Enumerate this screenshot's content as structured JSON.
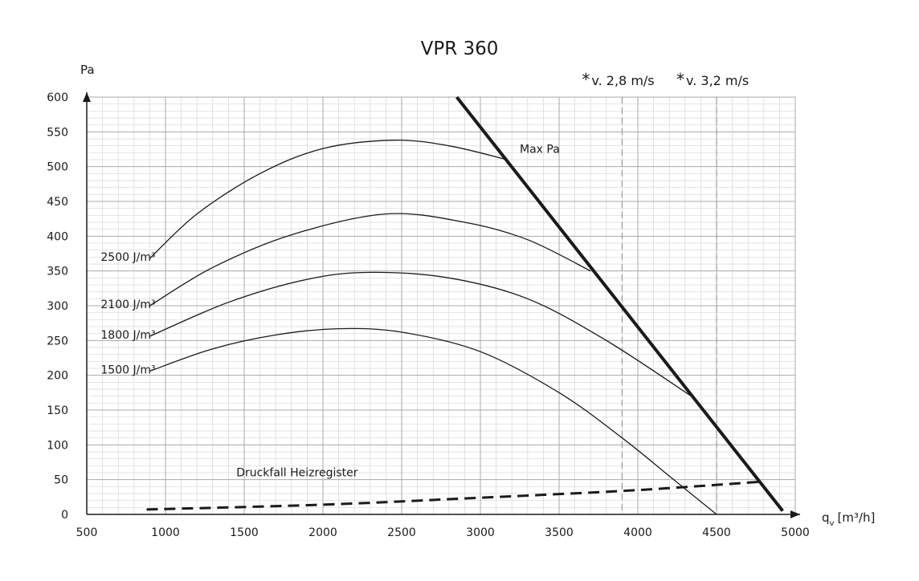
{
  "chart_data": {
    "type": "line",
    "title": "VPR 360",
    "ylabel": "Pa",
    "xlabel_main": "q",
    "xlabel_sub": "v",
    "xlabel_unit": "[m³/h]",
    "xlim": [
      500,
      5000
    ],
    "ylim": [
      0,
      600
    ],
    "x_ticks": [
      "500",
      "1000",
      "1500",
      "2000",
      "2500",
      "3000",
      "3500",
      "4000",
      "4500",
      "5000"
    ],
    "y_ticks": [
      "0",
      "50",
      "100",
      "150",
      "200",
      "250",
      "300",
      "350",
      "400",
      "450",
      "500",
      "550",
      "600"
    ],
    "grid": true,
    "series": [
      {
        "name": "2500 J/m³",
        "x": [
          900,
          1200,
          1600,
          2000,
          2450,
          2800,
          3170
        ],
        "y": [
          368,
          432,
          490,
          526,
          538,
          530,
          510
        ]
      },
      {
        "name": "2100 J/m³",
        "x": [
          900,
          1300,
          1800,
          2400,
          2900,
          3300,
          3700
        ],
        "y": [
          300,
          355,
          402,
          432,
          420,
          395,
          350
        ]
      },
      {
        "name": "1800 J/m³",
        "x": [
          900,
          1400,
          1900,
          2300,
          2800,
          3300,
          3800,
          4340
        ],
        "y": [
          256,
          305,
          338,
          348,
          340,
          310,
          250,
          170
        ]
      },
      {
        "name": "1500 J/m³",
        "x": [
          900,
          1300,
          1700,
          2100,
          2500,
          3000,
          3500,
          3900,
          4200,
          4500
        ],
        "y": [
          206,
          238,
          258,
          267,
          262,
          234,
          175,
          110,
          55,
          0
        ]
      },
      {
        "name": "Max Pa",
        "x": [
          2850,
          4920
        ],
        "y": [
          600,
          5
        ]
      },
      {
        "name": "Druckfall Heizregister",
        "x": [
          880,
          2000,
          3000,
          4000,
          4780
        ],
        "y": [
          7,
          14,
          24,
          35,
          47
        ]
      }
    ],
    "series_styles": {
      "Max Pa": "bold",
      "Druckfall Heizregister": "dashed"
    },
    "annotations": [
      {
        "text": "Max Pa",
        "x": 3250,
        "y": 520
      },
      {
        "text": "Druckfall Heizregister",
        "x": 1450,
        "y": 55
      }
    ],
    "velocity_lines": [
      {
        "star": "*",
        "text": "v. 2,8 m/s",
        "x": 3900
      },
      {
        "star": "*",
        "text": "v. 3,2 m/s",
        "x": 4500
      }
    ]
  }
}
